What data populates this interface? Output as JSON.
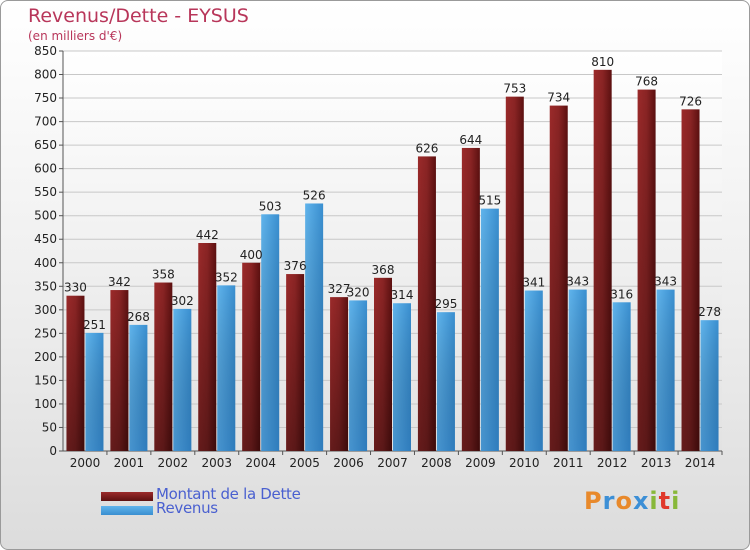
{
  "title": "Revenus/Dette - EYSUS",
  "subtitle": "(en milliers d'€)",
  "logo": {
    "text": "Proxiti",
    "colors": [
      "#e8892b",
      "#3c8fd6",
      "#e8892b",
      "#3c8fd6",
      "#88b83a",
      "#e0392b",
      "#88b83a"
    ]
  },
  "colors": {
    "dette": "#7a1c1c",
    "revenus": "#4aa2e0",
    "title": "#b8365a",
    "legend_text": "#4a60d0"
  },
  "chart_data": {
    "type": "bar",
    "categories": [
      "2000",
      "2001",
      "2002",
      "2003",
      "2004",
      "2005",
      "2006",
      "2007",
      "2008",
      "2009",
      "2010",
      "2011",
      "2012",
      "2013",
      "2014"
    ],
    "series": [
      {
        "name": "Montant de la Dette",
        "values": [
          330,
          342,
          358,
          442,
          400,
          376,
          327,
          368,
          626,
          644,
          753,
          734,
          810,
          768,
          726
        ]
      },
      {
        "name": "Revenus",
        "values": [
          251,
          268,
          302,
          352,
          503,
          526,
          320,
          314,
          295,
          515,
          341,
          343,
          316,
          343,
          278
        ]
      }
    ],
    "title": "Revenus/Dette - EYSUS",
    "ylabel": "(en milliers d'€)",
    "ylim": [
      0,
      850
    ],
    "yticks": [
      0,
      50,
      100,
      150,
      200,
      250,
      300,
      350,
      400,
      450,
      500,
      550,
      600,
      650,
      700,
      750,
      800,
      850
    ],
    "grid": true,
    "legend_position": "bottom-left"
  }
}
